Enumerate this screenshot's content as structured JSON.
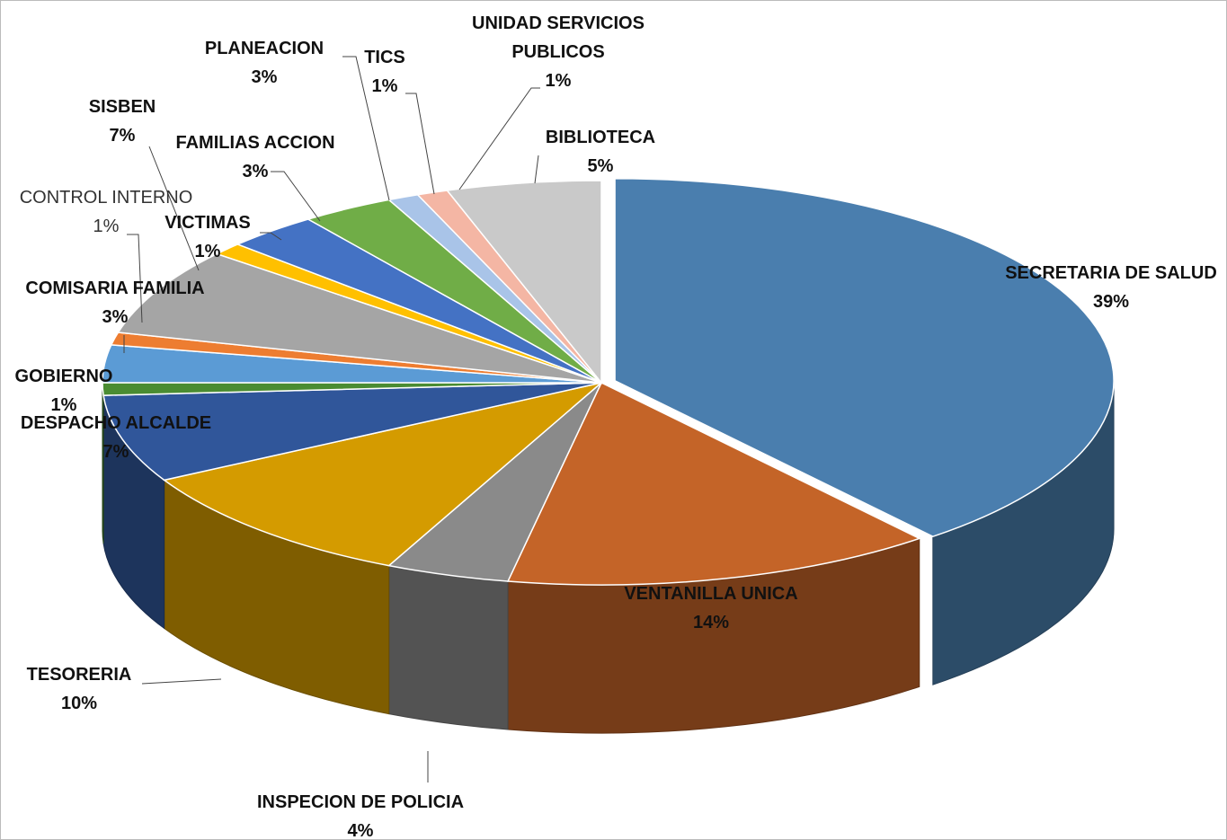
{
  "chart_data": {
    "type": "pie",
    "categories": [
      "SECRETARIA DE SALUD",
      "VENTANILLA UNICA",
      "INSPECION DE POLICIA",
      "TESORERIA",
      "DESPACHO ALCALDE",
      "GOBIERNO",
      "COMISARIA FAMILIA",
      "CONTROL INTERNO",
      "SISBEN",
      "VICTIMAS",
      "FAMILIAS ACCION",
      "PLANEACION",
      "TICS",
      "UNIDAD SERVICIOS PUBLICOS",
      "BIBLIOTECA"
    ],
    "values": [
      39,
      14,
      4,
      10,
      7,
      1,
      3,
      1,
      7,
      1,
      3,
      3,
      1,
      1,
      5
    ],
    "value_labels": [
      "39%",
      "14%",
      "4%",
      "10%",
      "7%",
      "1%",
      "3%",
      "1%",
      "7%",
      "1%",
      "3%",
      "3%",
      "1%",
      "1%",
      "5%"
    ],
    "colors": [
      "#4a7eae",
      "#c46428",
      "#8a8a8a",
      "#d49b00",
      "#30569a",
      "#4a8c32",
      "#5b9bd5",
      "#ed7d31",
      "#a5a5a5",
      "#ffc000",
      "#4472c4",
      "#70ad47",
      "#a9c4e8",
      "#f4b6a4",
      "#c9c9c9"
    ]
  }
}
